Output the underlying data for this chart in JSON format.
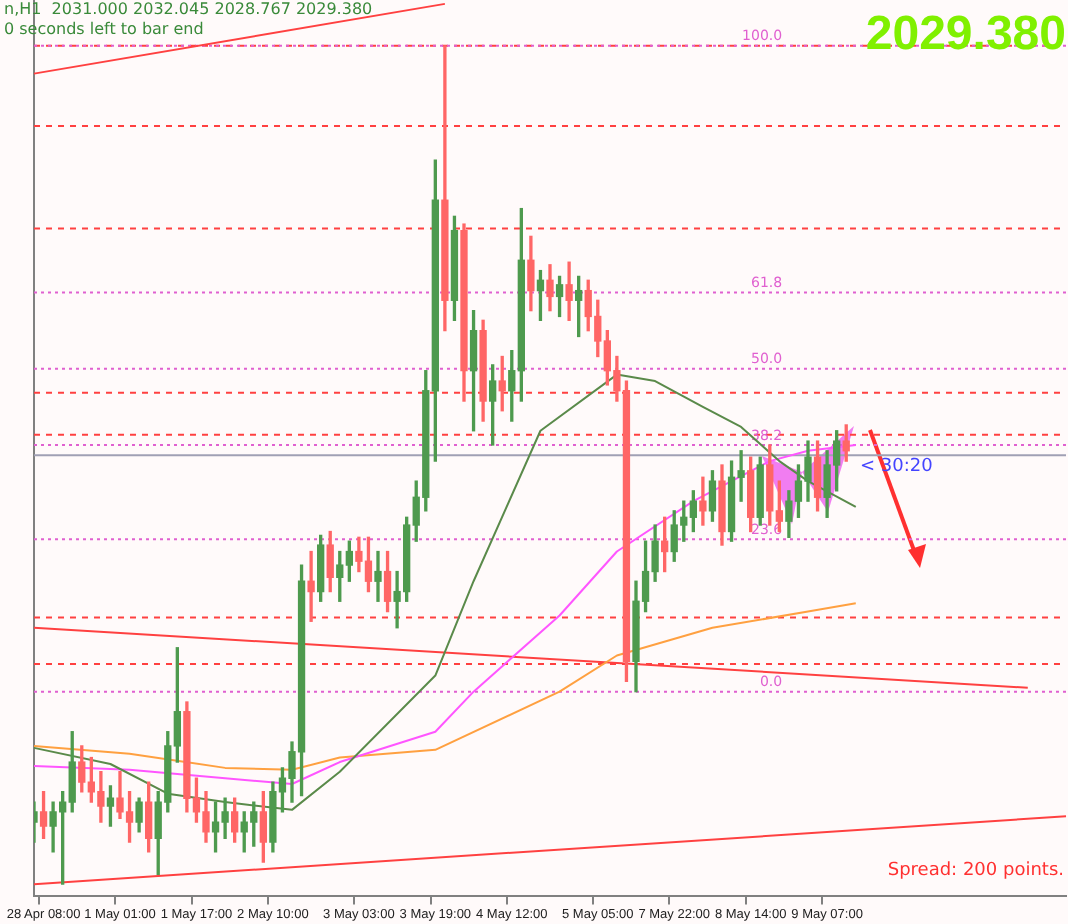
{
  "chart_data": {
    "type": "candlestick",
    "grid": false,
    "legend": false,
    "tick_labels": "x",
    "ylim": [
      -31.7,
      107.1
    ],
    "categories": [
      null,
      "28 Apr 08:00",
      null,
      null,
      null,
      null,
      null,
      null,
      null,
      "1 May 01:00",
      null,
      null,
      null,
      null,
      null,
      null,
      null,
      "1 May 17:00",
      null,
      null,
      null,
      null,
      null,
      null,
      null,
      "2 May 10:00",
      null,
      null,
      null,
      null,
      null,
      null,
      null,
      null,
      "3 May 03:00",
      null,
      null,
      null,
      null,
      null,
      null,
      null,
      "3 May 19:00",
      null,
      null,
      null,
      null,
      null,
      null,
      null,
      "4 May 12:00",
      null,
      null,
      null,
      null,
      null,
      null,
      null,
      null,
      "5 May 05:00",
      null,
      null,
      null,
      null,
      null,
      null,
      null,
      "7 May 22:00",
      null,
      null,
      null,
      null,
      null,
      null,
      null,
      "8 May 14:00",
      null,
      null,
      null,
      null,
      null,
      null,
      null,
      "9 May 07:00",
      null,
      null,
      null,
      null,
      null,
      null,
      null,
      null,
      null,
      null,
      null,
      null,
      null,
      null,
      null,
      null,
      null,
      null,
      null,
      null,
      null,
      null,
      null,
      null,
      null
    ],
    "ohlc": [
      [
        -20.2,
        -17.1,
        -23.3,
        -18.6
      ],
      [
        -18.6,
        -15.5,
        -22.7,
        -20.8
      ],
      [
        -20.8,
        -17.1,
        -24.8,
        -18.6
      ],
      [
        -18.6,
        -15.5,
        -29.8,
        -17.1
      ],
      [
        -17.1,
        -6.2,
        -18.6,
        -10.9
      ],
      [
        -10.9,
        -8.4,
        -15.5,
        -14.0
      ],
      [
        -14.0,
        -10.2,
        -17.1,
        -15.5
      ],
      [
        -15.5,
        -12.4,
        -20.2,
        -17.7
      ],
      [
        -17.7,
        -14.6,
        -20.8,
        -16.5
      ],
      [
        -16.5,
        -12.4,
        -19.6,
        -18.6
      ],
      [
        -18.6,
        -15.5,
        -23.3,
        -20.2
      ],
      [
        -20.2,
        -16.5,
        -21.7,
        -17.1
      ],
      [
        -17.1,
        -14.0,
        -24.8,
        -22.7
      ],
      [
        -22.7,
        -15.5,
        -28.3,
        -17.1
      ],
      [
        -17.1,
        -6.2,
        -18.6,
        -8.4
      ],
      [
        -8.4,
        6.8,
        -10.9,
        -3.1
      ],
      [
        -3.1,
        -1.6,
        -18.6,
        -16.5
      ],
      [
        -16.5,
        -13.4,
        -20.2,
        -18.6
      ],
      [
        -18.6,
        -15.5,
        -23.3,
        -21.7
      ],
      [
        -21.7,
        -17.1,
        -24.8,
        -20.2
      ],
      [
        -20.2,
        -16.5,
        -22.7,
        -18.6
      ],
      [
        -18.6,
        -16.5,
        -23.3,
        -21.7
      ],
      [
        -21.7,
        -18.6,
        -24.8,
        -20.2
      ],
      [
        -20.2,
        -17.1,
        -23.9,
        -18.6
      ],
      [
        -18.6,
        -15.5,
        -26.4,
        -23.3
      ],
      [
        -23.3,
        -14.0,
        -24.8,
        -15.5
      ],
      [
        -15.5,
        -11.8,
        -18.6,
        -13.4
      ],
      [
        -13.4,
        -7.8,
        -17.1,
        -9.3
      ],
      [
        -9.3,
        19.6,
        -16.1,
        17.1
      ],
      [
        17.1,
        21.7,
        10.9,
        15.5
      ],
      [
        15.5,
        24.2,
        14.0,
        22.7
      ],
      [
        22.7,
        24.8,
        15.5,
        17.7
      ],
      [
        17.7,
        21.7,
        14.0,
        19.6
      ],
      [
        19.6,
        23.3,
        17.1,
        21.7
      ],
      [
        21.7,
        23.9,
        18.6,
        20.2
      ],
      [
        20.2,
        23.9,
        15.5,
        17.1
      ],
      [
        17.1,
        21.7,
        14.0,
        18.6
      ],
      [
        18.6,
        21.7,
        12.4,
        14.0
      ],
      [
        14.0,
        18.6,
        9.9,
        15.5
      ],
      [
        15.5,
        27.0,
        14.0,
        25.8
      ],
      [
        25.8,
        32.6,
        23.3,
        30.1
      ],
      [
        30.1,
        49.7,
        28.0,
        46.6
      ],
      [
        46.6,
        82.3,
        35.7,
        76.1
      ],
      [
        76.1,
        100.0,
        55.9,
        60.6
      ],
      [
        60.6,
        73.6,
        57.5,
        71.4
      ],
      [
        71.4,
        72.4,
        45.0,
        49.7
      ],
      [
        49.7,
        59.0,
        40.4,
        55.9
      ],
      [
        55.9,
        57.5,
        41.9,
        45.0
      ],
      [
        45.0,
        50.6,
        38.2,
        48.1
      ],
      [
        48.1,
        51.9,
        43.5,
        46.6
      ],
      [
        46.6,
        52.8,
        41.9,
        49.7
      ],
      [
        49.7,
        74.8,
        45.0,
        66.8
      ],
      [
        66.8,
        70.5,
        59.0,
        62.1
      ],
      [
        62.1,
        65.2,
        57.5,
        63.7
      ],
      [
        63.7,
        66.1,
        59.0,
        61.2
      ],
      [
        61.2,
        64.3,
        58.1,
        63.0
      ],
      [
        63.0,
        66.5,
        57.5,
        60.6
      ],
      [
        60.6,
        64.3,
        55.0,
        62.1
      ],
      [
        62.1,
        63.7,
        55.9,
        58.1
      ],
      [
        58.1,
        60.6,
        51.9,
        54.3
      ],
      [
        54.3,
        55.9,
        47.5,
        49.7
      ],
      [
        49.7,
        51.9,
        45.0,
        46.6
      ],
      [
        46.6,
        48.1,
        1.6,
        4.7
      ],
      [
        4.7,
        17.1,
        0.0,
        14.0
      ],
      [
        14.0,
        23.3,
        12.4,
        18.6
      ],
      [
        18.6,
        25.8,
        17.1,
        23.3
      ],
      [
        23.3,
        27.0,
        18.6,
        21.7
      ],
      [
        21.7,
        28.0,
        20.2,
        25.8
      ],
      [
        25.8,
        29.5,
        23.3,
        27.0
      ],
      [
        27.0,
        31.1,
        24.8,
        29.5
      ],
      [
        29.5,
        33.2,
        25.8,
        28.0
      ],
      [
        28.0,
        34.2,
        26.4,
        32.6
      ],
      [
        32.6,
        35.1,
        22.7,
        24.8
      ],
      [
        24.8,
        35.7,
        23.3,
        33.2
      ],
      [
        33.2,
        37.3,
        29.5,
        34.2
      ],
      [
        34.2,
        36.3,
        24.8,
        27.0
      ],
      [
        27.0,
        36.3,
        25.8,
        35.1
      ],
      [
        35.1,
        38.2,
        25.8,
        28.0
      ],
      [
        28.0,
        32.6,
        24.8,
        26.4
      ],
      [
        26.4,
        31.1,
        23.9,
        29.5
      ],
      [
        29.5,
        35.1,
        27.0,
        32.6
      ],
      [
        32.6,
        38.8,
        29.5,
        36.3
      ],
      [
        36.3,
        38.8,
        28.0,
        30.1
      ],
      [
        30.1,
        37.3,
        27.0,
        35.1
      ],
      [
        35.1,
        40.4,
        31.1,
        38.8
      ],
      [
        38.8,
        41.3,
        35.7,
        37.3
      ],
      null,
      null,
      null,
      null,
      null,
      null,
      null,
      null,
      null,
      null,
      null,
      null,
      null,
      null,
      null,
      null,
      null,
      null,
      null,
      null,
      null,
      null,
      null
    ],
    "colors": [
      "#4e9a4e",
      "#ff6666",
      "#4e9a4e",
      "#4e9a4e",
      "#4e9a4e",
      "#ff6666",
      "#ff6666",
      "#ff6666",
      "#4e9a4e",
      "#ff6666",
      "#ff6666",
      "#4e9a4e",
      "#ff6666",
      "#4e9a4e",
      "#4e9a4e",
      "#4e9a4e",
      "#ff6666",
      "#ff6666",
      "#ff6666",
      "#4e9a4e",
      "#4e9a4e",
      "#ff6666",
      "#4e9a4e",
      "#4e9a4e",
      "#ff6666",
      "#4e9a4e",
      "#4e9a4e",
      "#4e9a4e",
      "#4e9a4e",
      "#ff6666",
      "#4e9a4e",
      "#ff6666",
      "#4e9a4e",
      "#4e9a4e",
      "#ff6666",
      "#ff6666",
      "#4e9a4e",
      "#ff6666",
      "#4e9a4e",
      "#4e9a4e",
      "#4e9a4e",
      "#4e9a4e",
      "#4e9a4e",
      "#ff6666",
      "#4e9a4e",
      "#ff6666",
      "#4e9a4e",
      "#ff6666",
      "#4e9a4e",
      "#ff6666",
      "#4e9a4e",
      "#4e9a4e",
      "#ff6666",
      "#4e9a4e",
      "#ff6666",
      "#4e9a4e",
      "#ff6666",
      "#4e9a4e",
      "#ff6666",
      "#ff6666",
      "#ff6666",
      "#ff6666",
      "#ff6666",
      "#4e9a4e",
      "#4e9a4e",
      "#4e9a4e",
      "#ff6666",
      "#4e9a4e",
      "#4e9a4e",
      "#4e9a4e",
      "#ff6666",
      "#4e9a4e",
      "#ff6666",
      "#4e9a4e",
      "#4e9a4e",
      "#ff6666",
      "#4e9a4e",
      "#ff6666",
      "#ff6666",
      "#4e9a4e",
      "#4e9a4e",
      "#4e9a4e",
      "#ff6666",
      "#4e9a4e",
      "#4e9a4e",
      "#ff6666",
      null,
      null,
      null,
      null,
      null,
      null,
      null,
      null,
      null,
      null,
      null,
      null,
      null,
      null,
      null,
      null,
      null,
      null,
      null,
      null,
      null,
      null,
      null
    ],
    "series": [
      {
        "type": "line",
        "color": "#5a8a4a",
        "values": [
          -8.7,
          null,
          null,
          null,
          null,
          null,
          null,
          null,
          -11.2,
          null,
          null,
          null,
          null,
          null,
          -15.8,
          null,
          null,
          null,
          null,
          null,
          -17.1,
          null,
          null,
          null,
          null,
          null,
          null,
          -18.3,
          null,
          null,
          null,
          null,
          -12.4,
          null,
          null,
          null,
          null,
          null,
          null,
          null,
          null,
          null,
          2.5,
          null,
          null,
          null,
          17.1,
          null,
          null,
          null,
          null,
          null,
          null,
          40.4,
          null,
          null,
          null,
          null,
          null,
          null,
          null,
          49.1,
          null,
          null,
          null,
          48.1,
          null,
          null,
          null,
          null,
          44.1,
          null,
          null,
          null,
          41.0,
          null,
          null,
          null,
          35.7,
          null,
          null,
          32.6,
          null,
          null,
          null,
          null,
          28.6,
          null,
          null,
          null,
          null,
          null,
          null,
          null,
          null,
          null,
          null,
          null,
          null,
          null,
          null,
          null,
          null,
          null,
          null,
          null,
          null,
          null,
          null
        ]
      },
      {
        "type": "line",
        "color": "#ff55ff",
        "values": [
          -11.5,
          null,
          null,
          null,
          null,
          null,
          null,
          null,
          null,
          null,
          -12.1,
          null,
          null,
          null,
          null,
          null,
          null,
          null,
          null,
          null,
          -13.4,
          null,
          null,
          null,
          null,
          null,
          null,
          -14.3,
          null,
          null,
          null,
          null,
          -10.9,
          null,
          null,
          null,
          null,
          null,
          null,
          null,
          null,
          null,
          -6.2,
          null,
          null,
          null,
          0.0,
          null,
          null,
          null,
          null,
          null,
          null,
          null,
          null,
          11.8,
          null,
          null,
          null,
          null,
          null,
          21.7,
          null,
          null,
          null,
          null,
          null,
          null,
          null,
          29.5,
          null,
          null,
          null,
          null,
          null,
          null,
          null,
          35.7,
          null,
          null,
          null,
          37.3,
          null,
          null,
          null,
          null,
          38.2,
          null,
          null,
          null,
          null,
          null,
          null,
          null,
          null,
          null,
          null,
          null,
          null,
          null,
          null,
          null,
          null,
          null,
          null,
          null,
          null,
          null,
          null
        ]
      },
      {
        "type": "line",
        "color": "#ffa040",
        "values": [
          -8.4,
          null,
          null,
          null,
          null,
          null,
          null,
          null,
          null,
          null,
          -9.6,
          null,
          null,
          null,
          null,
          null,
          null,
          null,
          null,
          null,
          -11.8,
          null,
          null,
          null,
          null,
          null,
          null,
          -12.1,
          null,
          null,
          null,
          null,
          -10.2,
          null,
          null,
          null,
          null,
          null,
          null,
          null,
          null,
          null,
          -9.0,
          null,
          null,
          null,
          null,
          null,
          null,
          null,
          null,
          null,
          null,
          null,
          null,
          0.0,
          null,
          null,
          null,
          null,
          null,
          5.6,
          null,
          null,
          null,
          null,
          null,
          null,
          null,
          null,
          null,
          9.9,
          null,
          null,
          null,
          null,
          null,
          null,
          null,
          null,
          null,
          12.4,
          null,
          null,
          null,
          null,
          13.7,
          null,
          null,
          null,
          null,
          null,
          null,
          null,
          null,
          null,
          null,
          null,
          null,
          null,
          null,
          null,
          null,
          null,
          null,
          null,
          null,
          null,
          null
        ]
      },
      {
        "type": "line",
        "color": "#ff4040",
        "values": [
          -29.8,
          null,
          null,
          null,
          null,
          null,
          null,
          null,
          null,
          null,
          null,
          null,
          null,
          null,
          null,
          null,
          null,
          null,
          null,
          null,
          null,
          null,
          null,
          null,
          null,
          null,
          null,
          null,
          null,
          null,
          null,
          null,
          null,
          null,
          null,
          null,
          null,
          null,
          null,
          null,
          null,
          null,
          null,
          null,
          null,
          null,
          null,
          null,
          null,
          null,
          null,
          null,
          null,
          null,
          null,
          null,
          null,
          null,
          null,
          null,
          null,
          null,
          null,
          null,
          null,
          null,
          null,
          null,
          null,
          null,
          null,
          null,
          null,
          null,
          null,
          null,
          null,
          null,
          null,
          null,
          null,
          null,
          null,
          null,
          null,
          null,
          null,
          null,
          null,
          null,
          null,
          null,
          null,
          null,
          null,
          null,
          null,
          null,
          null,
          null,
          null,
          null,
          null,
          null,
          null,
          null,
          null,
          null,
          -19.3
        ]
      },
      {
        "type": "line",
        "color": "#ff4040",
        "values": [
          9.9,
          null,
          null,
          null,
          null,
          null,
          null,
          null,
          null,
          null,
          null,
          null,
          null,
          null,
          null,
          null,
          null,
          null,
          null,
          null,
          null,
          null,
          null,
          null,
          null,
          null,
          null,
          null,
          null,
          null,
          null,
          null,
          null,
          null,
          null,
          null,
          null,
          null,
          null,
          null,
          null,
          null,
          null,
          null,
          null,
          null,
          null,
          null,
          null,
          null,
          null,
          null,
          null,
          null,
          null,
          null,
          null,
          null,
          null,
          null,
          null,
          null,
          null,
          null,
          null,
          null,
          null,
          null,
          null,
          null,
          null,
          null,
          null,
          null,
          null,
          null,
          null,
          null,
          null,
          null,
          null,
          null,
          null,
          null,
          null,
          null,
          null,
          null,
          null,
          null,
          null,
          null,
          null,
          null,
          null,
          null,
          null,
          null,
          null,
          null,
          null,
          null,
          null,
          null,
          0.6,
          null,
          null,
          null,
          null
        ]
      },
      {
        "type": "line",
        "color": "#ff4040",
        "values": [
          95.7,
          null,
          null,
          null,
          null,
          null,
          null,
          null,
          null,
          null,
          null,
          null,
          null,
          null,
          null,
          null,
          null,
          null,
          null,
          null,
          null,
          null,
          null,
          null,
          null,
          null,
          null,
          null,
          null,
          null,
          null,
          null,
          null,
          null,
          null,
          null,
          null,
          null,
          null,
          null,
          null,
          null,
          null,
          106.5,
          null,
          null,
          null,
          null,
          null,
          null,
          null,
          null,
          null,
          null,
          null,
          null,
          null,
          null,
          null,
          null,
          null,
          null,
          null,
          null,
          null,
          null,
          null,
          null,
          null,
          null,
          null,
          null,
          null,
          null,
          null,
          null,
          null,
          null,
          null,
          null,
          null,
          null,
          null,
          null,
          null,
          null,
          null,
          null,
          null,
          null,
          null,
          null,
          null,
          null,
          null,
          null,
          null,
          null,
          null,
          null,
          null,
          null,
          null,
          null,
          null,
          null,
          null,
          null,
          null
        ]
      }
    ],
    "ref_lines": [
      {
        "axis": "y",
        "value": 100.0,
        "color": "#ff4040",
        "line_style": "dashed"
      },
      {
        "axis": "y",
        "value": 87.6,
        "color": "#ff4040",
        "line_style": "dashed"
      },
      {
        "axis": "y",
        "value": 71.7,
        "color": "#ff4040",
        "line_style": "dashed"
      },
      {
        "axis": "y",
        "value": 46.3,
        "color": "#ff4040",
        "line_style": "dashed"
      },
      {
        "axis": "y",
        "value": 39.8,
        "color": "#ff4040",
        "line_style": "dashed"
      },
      {
        "axis": "y",
        "value": 11.5,
        "color": "#ff4040",
        "line_style": "dashed"
      },
      {
        "axis": "y",
        "value": 4.3,
        "color": "#ff4040",
        "line_style": "dashed"
      },
      {
        "axis": "y",
        "value": 36.6,
        "color": "#a0a0b4",
        "line_style": "solid"
      },
      {
        "axis": "y",
        "value": 100.0,
        "label": "100.0",
        "color": "#e060d0",
        "line_style": "dotted"
      },
      {
        "axis": "y",
        "value": 61.8,
        "label": "61.8",
        "color": "#e060d0",
        "line_style": "dotted"
      },
      {
        "axis": "y",
        "value": 50.0,
        "label": "50.0",
        "color": "#e060d0",
        "line_style": "dotted"
      },
      {
        "axis": "y",
        "value": 38.2,
        "label": "38.2",
        "color": "#e060d0",
        "line_style": "dotted"
      },
      {
        "axis": "y",
        "value": 23.6,
        "label": "23.6",
        "color": "#e060d0",
        "line_style": "dotted"
      },
      {
        "axis": "y",
        "value": 0.0,
        "label": "0.0",
        "color": "#e060d0",
        "line_style": "dotted"
      }
    ],
    "annotations": [
      "n,H1  2031.000 2032.045 2028.767 2029.380",
      "0 seconds left to bar end",
      "2029.380",
      "< 30:20",
      "Spread: 200 points."
    ]
  }
}
